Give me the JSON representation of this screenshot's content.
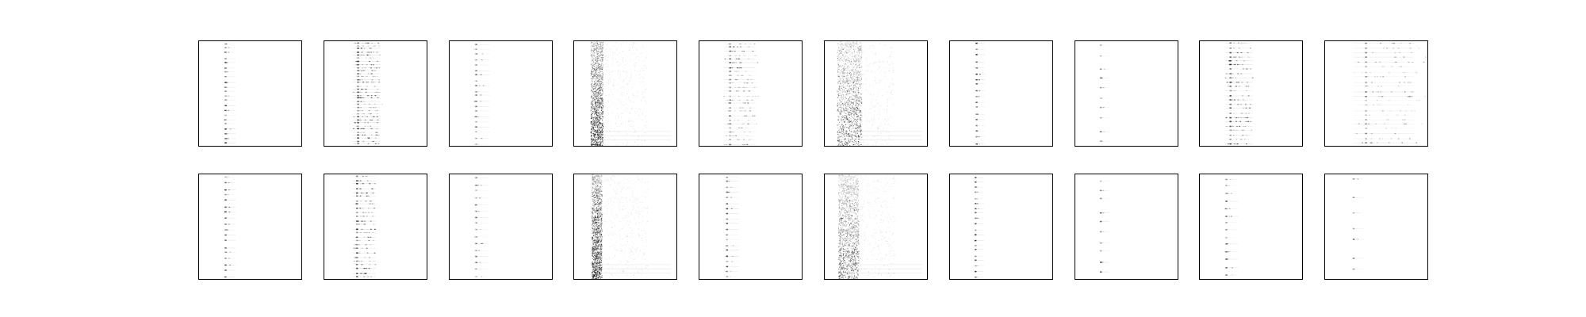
{
  "chart_data": {
    "type": "heatmap",
    "layout": {
      "rows": 2,
      "columns": 10
    },
    "colormap": "gray_r",
    "background_color": "#ffffff",
    "frame_color": "#000000",
    "axes_visible": false,
    "grid": false,
    "legend": "none",
    "xlim": [
      0,
      1
    ],
    "ylim": [
      0,
      1
    ],
    "panels": [
      {
        "row": 1,
        "col": 1,
        "pattern": "single-column-dots",
        "x_center": 0.26,
        "x_spread": 0.03,
        "n_rows": 22,
        "intensity": 0.75
      },
      {
        "row": 1,
        "col": 2,
        "pattern": "multi-column-dots",
        "x_center": 0.33,
        "x_spread": 0.1,
        "n_rows": 34,
        "intensity": 0.8
      },
      {
        "row": 1,
        "col": 3,
        "pattern": "single-column-dots",
        "x_center": 0.26,
        "x_spread": 0.05,
        "n_rows": 20,
        "intensity": 0.6
      },
      {
        "row": 1,
        "col": 4,
        "pattern": "dense-vertical-band",
        "x_center": 0.22,
        "x_spread": 0.06,
        "n_rows": 0,
        "intensity": 0.85
      },
      {
        "row": 1,
        "col": 5,
        "pattern": "multi-column-dots",
        "x_center": 0.3,
        "x_spread": 0.12,
        "n_rows": 26,
        "intensity": 0.65
      },
      {
        "row": 1,
        "col": 6,
        "pattern": "dense-vertical-band",
        "x_center": 0.24,
        "x_spread": 0.12,
        "n_rows": 0,
        "intensity": 0.7
      },
      {
        "row": 1,
        "col": 7,
        "pattern": "single-column-dots",
        "x_center": 0.26,
        "x_spread": 0.02,
        "n_rows": 18,
        "intensity": 0.7
      },
      {
        "row": 1,
        "col": 8,
        "pattern": "single-column-dots",
        "x_center": 0.25,
        "x_spread": 0.02,
        "n_rows": 10,
        "intensity": 0.65
      },
      {
        "row": 1,
        "col": 9,
        "pattern": "multi-column-dots",
        "x_center": 0.3,
        "x_spread": 0.1,
        "n_rows": 24,
        "intensity": 0.75
      },
      {
        "row": 1,
        "col": 10,
        "pattern": "multi-column-dots",
        "x_center": 0.4,
        "x_spread": 0.25,
        "n_rows": 22,
        "intensity": 0.55
      },
      {
        "row": 2,
        "col": 1,
        "pattern": "single-column-dots",
        "x_center": 0.26,
        "x_spread": 0.03,
        "n_rows": 18,
        "intensity": 0.75
      },
      {
        "row": 2,
        "col": 2,
        "pattern": "multi-column-dots",
        "x_center": 0.32,
        "x_spread": 0.08,
        "n_rows": 26,
        "intensity": 0.8
      },
      {
        "row": 2,
        "col": 3,
        "pattern": "single-column-dots",
        "x_center": 0.26,
        "x_spread": 0.04,
        "n_rows": 16,
        "intensity": 0.6
      },
      {
        "row": 2,
        "col": 4,
        "pattern": "dense-vertical-band",
        "x_center": 0.22,
        "x_spread": 0.05,
        "n_rows": 0,
        "intensity": 0.85
      },
      {
        "row": 2,
        "col": 5,
        "pattern": "single-column-dots",
        "x_center": 0.27,
        "x_spread": 0.04,
        "n_rows": 20,
        "intensity": 0.7
      },
      {
        "row": 2,
        "col": 6,
        "pattern": "dense-vertical-band",
        "x_center": 0.23,
        "x_spread": 0.1,
        "n_rows": 0,
        "intensity": 0.65
      },
      {
        "row": 2,
        "col": 7,
        "pattern": "single-column-dots",
        "x_center": 0.25,
        "x_spread": 0.02,
        "n_rows": 20,
        "intensity": 0.75
      },
      {
        "row": 2,
        "col": 8,
        "pattern": "single-column-dots",
        "x_center": 0.25,
        "x_spread": 0.02,
        "n_rows": 10,
        "intensity": 0.65
      },
      {
        "row": 2,
        "col": 9,
        "pattern": "single-column-dots",
        "x_center": 0.26,
        "x_spread": 0.04,
        "n_rows": 14,
        "intensity": 0.7
      },
      {
        "row": 2,
        "col": 10,
        "pattern": "single-column-dots",
        "x_center": 0.28,
        "x_spread": 0.03,
        "n_rows": 7,
        "intensity": 0.5
      }
    ]
  }
}
